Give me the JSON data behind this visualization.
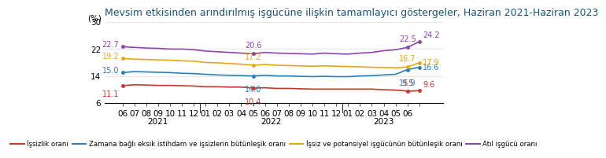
{
  "title": "Mevsim etkisinden arındırılmış işgücüne ilişkin tamamlayıcı göstergeler, Haziran 2021-Haziran 2023",
  "ylabel": "(%)",
  "ylim": [
    6,
    30
  ],
  "x_labels_2021": [
    "06",
    "07",
    "08",
    "09",
    "10",
    "11",
    "12"
  ],
  "x_labels_2022": [
    "01",
    "02",
    "03",
    "04",
    "05",
    "06",
    "07",
    "08",
    "09",
    "10",
    "11",
    "12"
  ],
  "x_labels_2023": [
    "01",
    "02",
    "03",
    "04",
    "05",
    "06"
  ],
  "issizlik": [
    11.1,
    11.4,
    11.3,
    11.2,
    11.2,
    11.1,
    11.0,
    10.8,
    10.8,
    10.7,
    10.7,
    10.4,
    10.5,
    10.3,
    10.3,
    10.2,
    10.1,
    10.1,
    10.1,
    10.1,
    10.1,
    10.1,
    9.9,
    9.8,
    9.5,
    9.6
  ],
  "zamana_bagli": [
    15.0,
    15.3,
    15.2,
    15.1,
    15.0,
    14.8,
    14.7,
    14.5,
    14.3,
    14.2,
    14.1,
    14.0,
    14.2,
    14.0,
    14.0,
    13.9,
    13.8,
    13.9,
    13.8,
    13.8,
    14.0,
    14.1,
    14.3,
    14.5,
    15.9,
    16.6
  ],
  "issiz_potansiyel": [
    19.2,
    19.0,
    18.9,
    18.8,
    18.7,
    18.5,
    18.4,
    18.0,
    17.9,
    17.7,
    17.5,
    17.2,
    17.4,
    17.2,
    17.1,
    17.0,
    16.9,
    17.0,
    16.9,
    16.8,
    16.7,
    16.6,
    16.5,
    16.4,
    16.7,
    17.9
  ],
  "atil_isgucu": [
    22.7,
    22.5,
    22.3,
    22.2,
    22.0,
    22.0,
    21.8,
    21.4,
    21.2,
    21.0,
    20.8,
    20.6,
    21.0,
    20.8,
    20.7,
    20.6,
    20.5,
    20.8,
    20.6,
    20.5,
    20.8,
    21.0,
    21.5,
    21.8,
    22.5,
    24.2
  ],
  "colors": {
    "issizlik": "#c0392b",
    "zamana_bagli": "#2980b9",
    "issiz_potansiyel": "#e6a817",
    "atil_isgucu": "#8e44ad"
  },
  "legend": [
    {
      "label": "İşsizlik oranı",
      "color": "#c0392b"
    },
    {
      "label": "Zamana bağlı eksik istihdam ve işsizlerin bütünleşik oranı",
      "color": "#2980b9"
    },
    {
      "label": "İşsiz ve potansiyel işgücünün bütünleşik oranı",
      "color": "#e6a817"
    },
    {
      "label": "Atıl işgücü oranı",
      "color": "#8e44ad"
    }
  ],
  "background_color": "#ffffff",
  "title_color": "#1a5276",
  "title_fontsize": 9.0,
  "axis_fontsize": 7.5,
  "annotation_fontsize": 7.0
}
